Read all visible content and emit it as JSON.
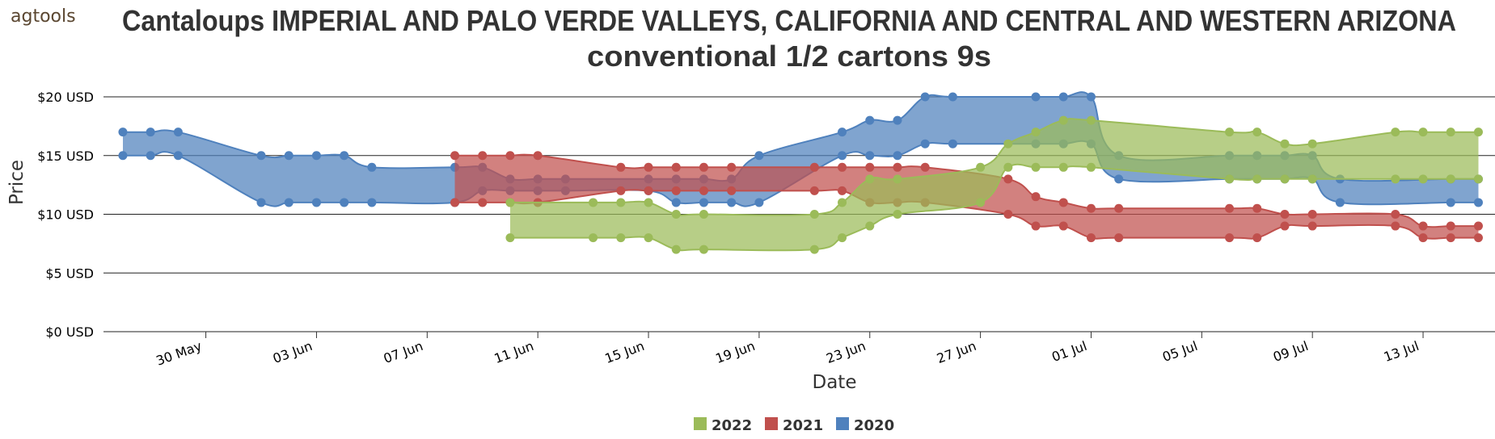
{
  "brand": {
    "name": "agtools"
  },
  "chart_data": {
    "type": "area",
    "title": "Cantaloups IMPERIAL AND PALO VERDE VALLEYS, CALIFORNIA AND CENTRAL AND WESTERN ARIZONA",
    "subtitle": "conventional 1/2 cartons 9s",
    "xlabel": "Date",
    "ylabel": "Price",
    "ylim": [
      0,
      20
    ],
    "y_ticks": [
      0,
      5,
      10,
      15,
      20
    ],
    "y_tick_labels": [
      "$0 USD",
      "$5 USD",
      "$10 USD",
      "$15 USD",
      "$20 USD"
    ],
    "x_ticks": [
      "30 May",
      "03 Jun",
      "07 Jun",
      "11 Jun",
      "15 Jun",
      "19 Jun",
      "23 Jun",
      "27 Jun",
      "01 Jul",
      "05 Jul",
      "09 Jul",
      "13 Jul"
    ],
    "x_tick_days": [
      150,
      154,
      158,
      162,
      166,
      170,
      174,
      178,
      182,
      186,
      190,
      194
    ],
    "x_range_days": [
      146.3,
      196.6
    ],
    "grid": true,
    "legend_position": "bottom-center",
    "series": [
      {
        "name": "2022",
        "color": "#9bbb59",
        "points": [
          {
            "x": 161,
            "low": 8,
            "high": 11
          },
          {
            "x": 164,
            "low": 8,
            "high": 11
          },
          {
            "x": 165,
            "low": 8,
            "high": 11
          },
          {
            "x": 166,
            "low": 8,
            "high": 11
          },
          {
            "x": 167,
            "low": 7,
            "high": 10
          },
          {
            "x": 168,
            "low": 7,
            "high": 10
          },
          {
            "x": 172,
            "low": 7,
            "high": 10
          },
          {
            "x": 173,
            "low": 8,
            "high": 11
          },
          {
            "x": 174,
            "low": 9,
            "high": 13
          },
          {
            "x": 175,
            "low": 10,
            "high": 13
          },
          {
            "x": 178,
            "low": 11,
            "high": 14
          },
          {
            "x": 179,
            "low": 14,
            "high": 16
          },
          {
            "x": 180,
            "low": 14,
            "high": 17
          },
          {
            "x": 181,
            "low": 14,
            "high": 18
          },
          {
            "x": 182,
            "low": 14,
            "high": 18
          },
          {
            "x": 187,
            "low": 13,
            "high": 17
          },
          {
            "x": 188,
            "low": 13,
            "high": 17
          },
          {
            "x": 189,
            "low": 13,
            "high": 16
          },
          {
            "x": 190,
            "low": 13,
            "high": 16
          },
          {
            "x": 193,
            "low": 13,
            "high": 17
          },
          {
            "x": 194,
            "low": 13,
            "high": 17
          },
          {
            "x": 195,
            "low": 13,
            "high": 17
          },
          {
            "x": 196,
            "low": 13,
            "high": 17
          }
        ]
      },
      {
        "name": "2021",
        "color": "#c0504d",
        "points": [
          {
            "x": 159,
            "low": 11,
            "high": 15
          },
          {
            "x": 160,
            "low": 11,
            "high": 15
          },
          {
            "x": 161,
            "low": 11,
            "high": 15
          },
          {
            "x": 162,
            "low": 11,
            "high": 15
          },
          {
            "x": 165,
            "low": 12,
            "high": 14
          },
          {
            "x": 166,
            "low": 12,
            "high": 14
          },
          {
            "x": 167,
            "low": 12,
            "high": 14
          },
          {
            "x": 168,
            "low": 12,
            "high": 14
          },
          {
            "x": 169,
            "low": 12,
            "high": 14
          },
          {
            "x": 172,
            "low": 12,
            "high": 14
          },
          {
            "x": 173,
            "low": 12,
            "high": 14
          },
          {
            "x": 174,
            "low": 11,
            "high": 14
          },
          {
            "x": 175,
            "low": 11,
            "high": 14
          },
          {
            "x": 176,
            "low": 11,
            "high": 14
          },
          {
            "x": 179,
            "low": 10,
            "high": 13
          },
          {
            "x": 180,
            "low": 9,
            "high": 11.5
          },
          {
            "x": 181,
            "low": 9,
            "high": 11
          },
          {
            "x": 182,
            "low": 8,
            "high": 10.5
          },
          {
            "x": 183,
            "low": 8,
            "high": 10.5
          },
          {
            "x": 187,
            "low": 8,
            "high": 10.5
          },
          {
            "x": 188,
            "low": 8,
            "high": 10.5
          },
          {
            "x": 189,
            "low": 9,
            "high": 10
          },
          {
            "x": 190,
            "low": 9,
            "high": 10
          },
          {
            "x": 193,
            "low": 9,
            "high": 10
          },
          {
            "x": 194,
            "low": 8,
            "high": 9
          },
          {
            "x": 195,
            "low": 8,
            "high": 9
          },
          {
            "x": 196,
            "low": 8,
            "high": 9
          }
        ]
      },
      {
        "name": "2020",
        "color": "#4f81bd",
        "points": [
          {
            "x": 147,
            "low": 15,
            "high": 17
          },
          {
            "x": 148,
            "low": 15,
            "high": 17
          },
          {
            "x": 149,
            "low": 15,
            "high": 17
          },
          {
            "x": 152,
            "low": 11,
            "high": 15
          },
          {
            "x": 153,
            "low": 11,
            "high": 15
          },
          {
            "x": 154,
            "low": 11,
            "high": 15
          },
          {
            "x": 155,
            "low": 11,
            "high": 15
          },
          {
            "x": 156,
            "low": 11,
            "high": 14
          },
          {
            "x": 159,
            "low": 11,
            "high": 14
          },
          {
            "x": 160,
            "low": 12,
            "high": 14
          },
          {
            "x": 161,
            "low": 12,
            "high": 13
          },
          {
            "x": 162,
            "low": 12,
            "high": 13
          },
          {
            "x": 163,
            "low": 12,
            "high": 13
          },
          {
            "x": 166,
            "low": 12,
            "high": 13
          },
          {
            "x": 167,
            "low": 11,
            "high": 13
          },
          {
            "x": 168,
            "low": 11,
            "high": 13
          },
          {
            "x": 169,
            "low": 11,
            "high": 13
          },
          {
            "x": 170,
            "low": 11,
            "high": 15
          },
          {
            "x": 173,
            "low": 15,
            "high": 17
          },
          {
            "x": 174,
            "low": 15,
            "high": 18
          },
          {
            "x": 175,
            "low": 15,
            "high": 18
          },
          {
            "x": 176,
            "low": 16,
            "high": 20
          },
          {
            "x": 177,
            "low": 16,
            "high": 20
          },
          {
            "x": 180,
            "low": 16,
            "high": 20
          },
          {
            "x": 181,
            "low": 16,
            "high": 20
          },
          {
            "x": 182,
            "low": 16,
            "high": 20
          },
          {
            "x": 183,
            "low": 13,
            "high": 15
          },
          {
            "x": 187,
            "low": 13,
            "high": 15
          },
          {
            "x": 188,
            "low": 13,
            "high": 15
          },
          {
            "x": 189,
            "low": 13,
            "high": 15
          },
          {
            "x": 190,
            "low": 13,
            "high": 15
          },
          {
            "x": 191,
            "low": 11,
            "high": 13
          },
          {
            "x": 195,
            "low": 11,
            "high": 13
          },
          {
            "x": 196,
            "low": 11,
            "high": 13
          }
        ]
      }
    ]
  }
}
